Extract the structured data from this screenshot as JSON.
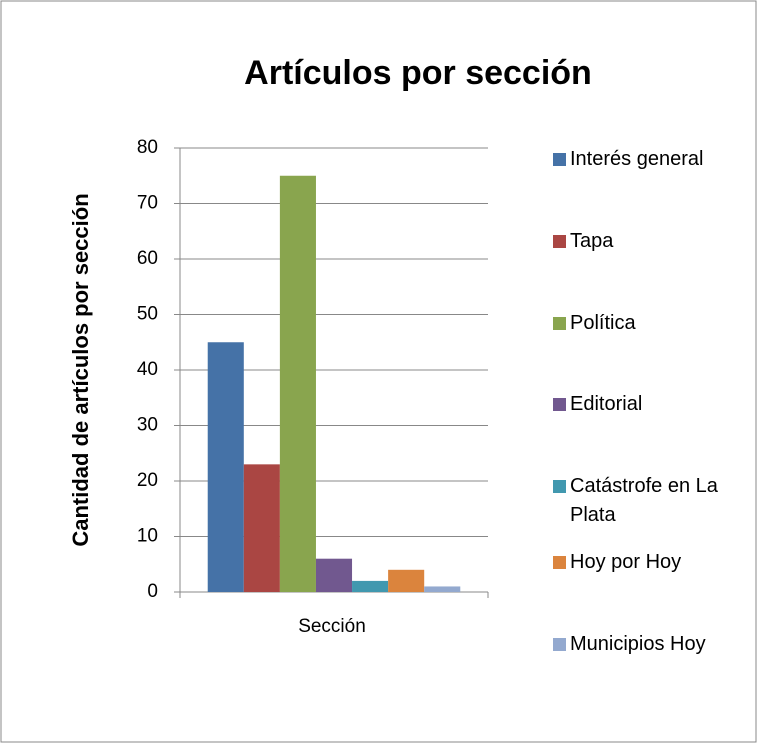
{
  "chart_data": {
    "type": "bar",
    "title": "Artículos por sección",
    "x_label": "Sección",
    "y_label": "Cantidad de artículos por sección",
    "categories": [
      "Sección"
    ],
    "series": [
      {
        "name": "Interés general",
        "color": "#4572a7",
        "values": [
          45
        ]
      },
      {
        "name": "Tapa",
        "color": "#aa4643",
        "values": [
          23
        ]
      },
      {
        "name": "Política",
        "color": "#89a54e",
        "values": [
          75
        ]
      },
      {
        "name": "Editorial",
        "color": "#71588f",
        "values": [
          6
        ]
      },
      {
        "name": "Catástrofe en La Plata",
        "color": "#4198af",
        "values": [
          2
        ]
      },
      {
        "name": "Hoy por Hoy",
        "color": "#db843d",
        "values": [
          4
        ]
      },
      {
        "name": "Municipios Hoy",
        "color": "#93a9cf",
        "values": [
          1
        ]
      }
    ],
    "ylim": [
      0,
      80
    ],
    "yticks": [
      0,
      10,
      20,
      30,
      40,
      50,
      60,
      70,
      80
    ],
    "grid": true,
    "legend": "right"
  }
}
